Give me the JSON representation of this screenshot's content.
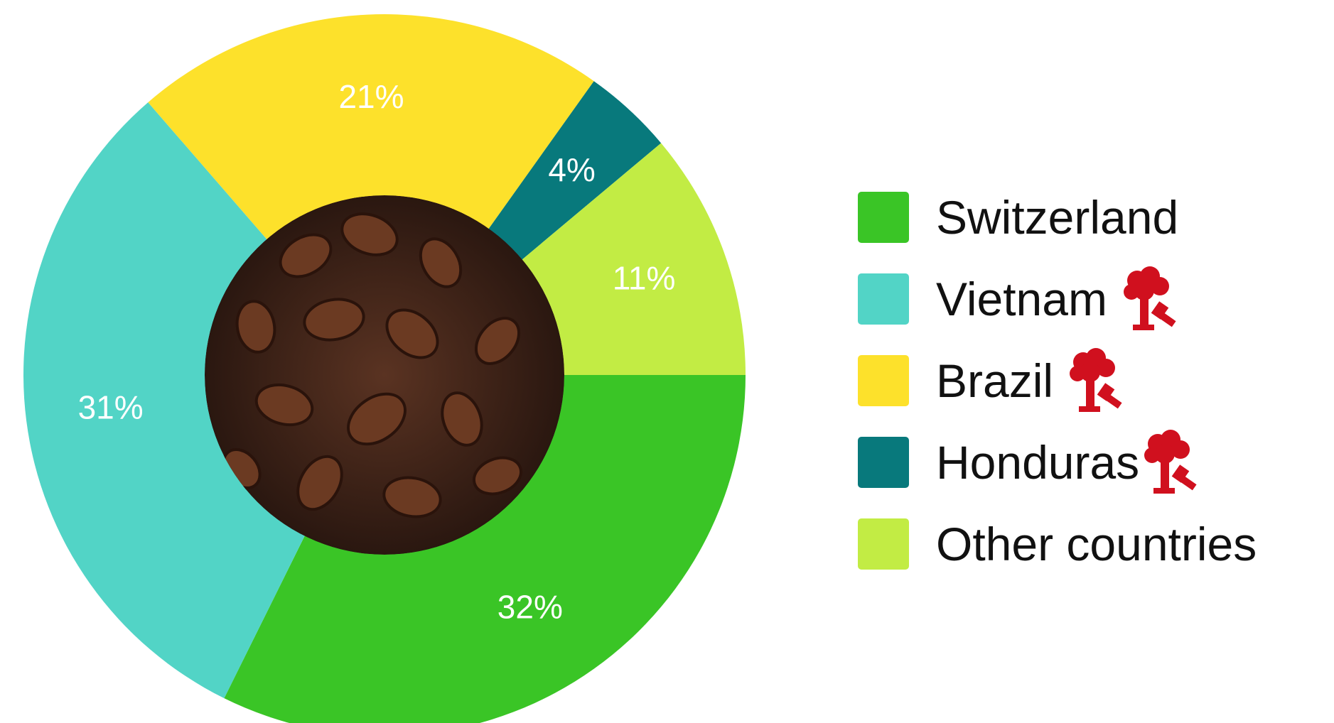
{
  "chart_data": {
    "type": "donut",
    "categories": [
      "Switzerland",
      "Vietnam",
      "Brazil",
      "Honduras",
      "Other countries"
    ],
    "values": [
      32,
      31,
      21,
      4,
      11
    ],
    "value_labels": [
      "32%",
      "31%",
      "21%",
      "4%",
      "11%"
    ],
    "colors": [
      "#3ac526",
      "#52d4c6",
      "#fde12b",
      "#08797c",
      "#c2ec44"
    ]
  }
}
